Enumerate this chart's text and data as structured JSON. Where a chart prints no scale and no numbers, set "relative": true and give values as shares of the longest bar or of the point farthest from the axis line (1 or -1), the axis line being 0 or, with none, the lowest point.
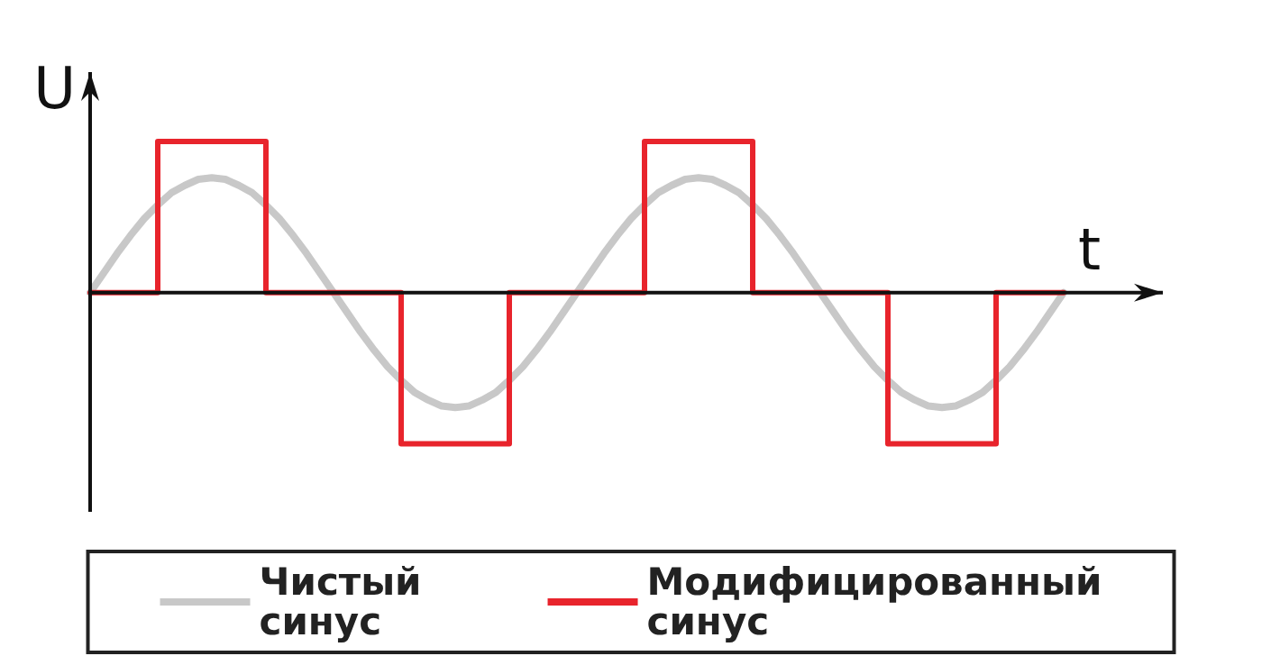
{
  "chart_data": {
    "type": "line",
    "relative": true,
    "xlabel": "t",
    "ylabel": "U",
    "grid": false,
    "legend": "bottom",
    "categories": [
      null,
      null,
      null,
      null,
      null,
      null,
      null,
      null,
      null,
      null,
      null,
      null,
      null,
      null,
      null,
      null,
      null,
      null,
      null,
      null,
      null,
      null,
      null,
      null,
      null,
      null,
      null,
      null,
      null,
      null,
      null,
      null,
      null,
      null,
      null,
      null,
      null,
      null,
      null,
      null,
      null,
      null,
      null,
      null,
      null,
      null,
      null,
      null,
      null,
      null,
      null,
      null,
      null,
      null,
      null,
      null,
      null,
      null,
      null,
      null,
      null,
      null,
      null,
      null,
      null,
      null,
      null,
      null,
      null,
      null,
      null,
      null,
      null
    ],
    "series": [
      {
        "name": "Чистый синус",
        "color": "#c8c8c8",
        "values": [
          0,
          0.13,
          0.26,
          0.38,
          0.49,
          0.58,
          0.66,
          0.71,
          0.75,
          0.76,
          0.75,
          0.71,
          0.66,
          0.58,
          0.49,
          0.38,
          0.26,
          0.13,
          0,
          -0.13,
          -0.26,
          -0.38,
          -0.49,
          -0.58,
          -0.66,
          -0.71,
          -0.75,
          -0.76,
          -0.75,
          -0.71,
          -0.66,
          -0.58,
          -0.49,
          -0.38,
          -0.26,
          -0.13,
          0,
          0.13,
          0.26,
          0.38,
          0.49,
          0.58,
          0.66,
          0.71,
          0.75,
          0.76,
          0.75,
          0.71,
          0.66,
          0.58,
          0.49,
          0.38,
          0.26,
          0.13,
          0,
          -0.13,
          -0.26,
          -0.38,
          -0.49,
          -0.58,
          -0.66,
          -0.71,
          -0.75,
          -0.76,
          -0.75,
          -0.71,
          -0.66,
          -0.58,
          -0.49,
          -0.38,
          -0.26,
          -0.13,
          0
        ]
      },
      {
        "name": "Модифицированный синус",
        "type": "step",
        "color": "#e8242c",
        "values": [
          0,
          0,
          0,
          0,
          0,
          1,
          1,
          1,
          1,
          1,
          1,
          1,
          1,
          0,
          0,
          0,
          0,
          0,
          0,
          0,
          0,
          0,
          0,
          -1,
          -1,
          -1,
          -1,
          -1,
          -1,
          -1,
          -1,
          0,
          0,
          0,
          0,
          0,
          0,
          0,
          0,
          0,
          0,
          1,
          1,
          1,
          1,
          1,
          1,
          1,
          1,
          0,
          0,
          0,
          0,
          0,
          0,
          0,
          0,
          0,
          0,
          -1,
          -1,
          -1,
          -1,
          -1,
          -1,
          -1,
          -1,
          0,
          0,
          0,
          0,
          0,
          0
        ]
      }
    ]
  }
}
